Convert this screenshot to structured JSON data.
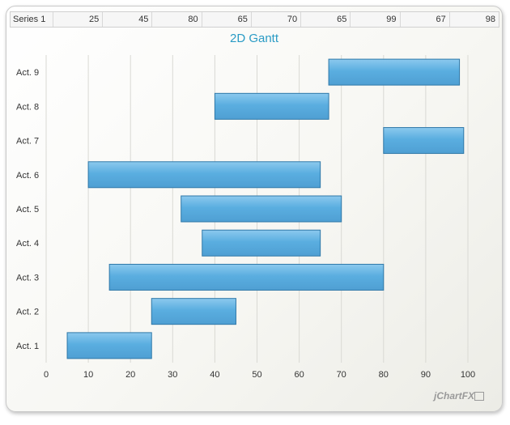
{
  "chart_data": {
    "type": "bar",
    "orientation": "horizontal-gantt",
    "title": "2D Gantt",
    "categories": [
      "Act. 1",
      "Act. 2",
      "Act. 3",
      "Act. 4",
      "Act. 5",
      "Act. 6",
      "Act. 7",
      "Act. 8",
      "Act. 9"
    ],
    "series": [
      {
        "name": "Series 1",
        "start": [
          5,
          25,
          15,
          37,
          32,
          10,
          80,
          40,
          67
        ],
        "end": [
          25,
          45,
          80,
          65,
          70,
          65,
          99,
          67,
          98
        ]
      }
    ],
    "xlim": [
      0,
      100
    ],
    "xticks": [
      0,
      10,
      20,
      30,
      40,
      50,
      60,
      70,
      80,
      90,
      100
    ],
    "grid": true,
    "bar_color": "#5aaee0",
    "bar_border": "#2f78a8"
  },
  "datagrid": {
    "label": "Series 1",
    "values": [
      "25",
      "45",
      "80",
      "65",
      "70",
      "65",
      "99",
      "67",
      "98"
    ]
  },
  "branding": {
    "logo_text": "jChartFX"
  }
}
